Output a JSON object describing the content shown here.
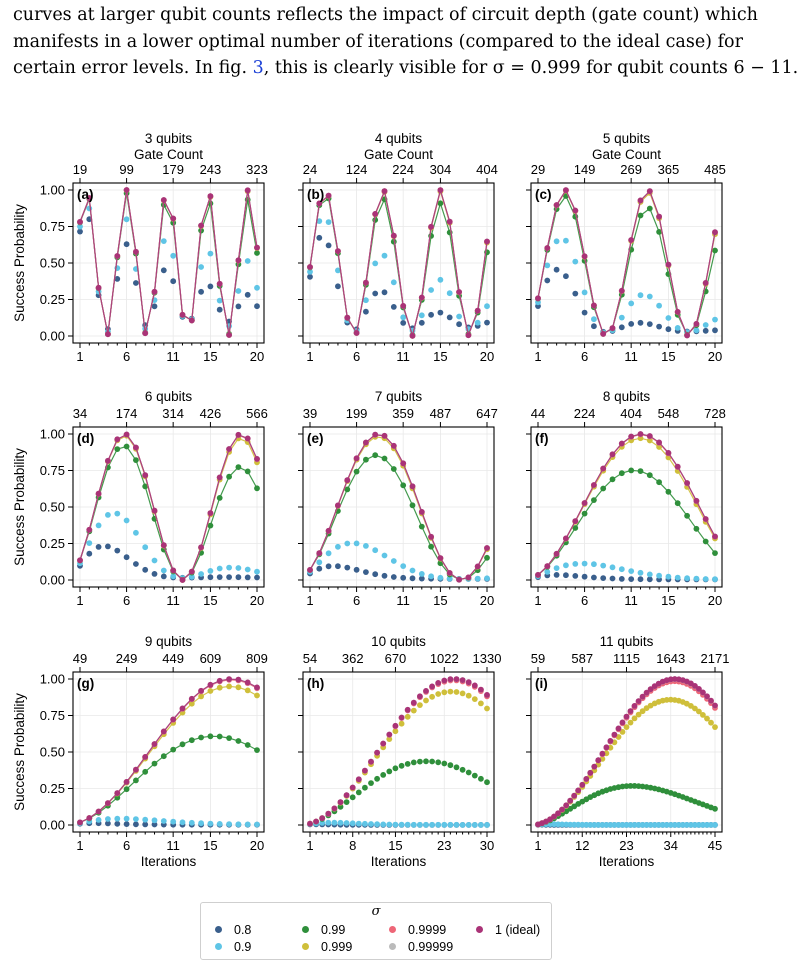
{
  "text": {
    "line1": "curves at larger qubit counts reflects the impact of circuit depth (gate count) which",
    "line2": "manifests in a lower optimal number of iterations (compared to the ideal case) for",
    "line3_a": "certain error levels. In fig. ",
    "line3_ref": "3",
    "line3_b": ", this is clearly visible for σ = 0.999 for qubit counts 6 − 11."
  },
  "legend": {
    "title": "σ",
    "entries": [
      "0.8",
      "0.9",
      "0.99",
      "0.999",
      "0.9999",
      "0.99999",
      "1 (ideal)"
    ]
  },
  "colors": {
    "0.8": "#3a5f8c",
    "0.9": "#5fc5e6",
    "0.99": "#2f8f3b",
    "0.999": "#cfbf3a",
    "0.9999": "#ee6677",
    "0.99999": "#bbbbbb",
    "1": "#aa3377"
  },
  "chart_data": {
    "type": "scatter",
    "shared": {
      "xlabel": "Iterations",
      "ylabel": "Success Probability",
      "top_axis_label": "Gate Count",
      "ylim": [
        0,
        1
      ],
      "yticks": [
        "0.00",
        "0.25",
        "0.50",
        "0.75",
        "1.00"
      ],
      "grid": true,
      "legend_position": "bottom-center"
    },
    "panels": [
      {
        "label": "(a)",
        "title": "3 qubits",
        "qubits": 3,
        "max_iter": 20,
        "xticks": [
          1,
          6,
          11,
          15,
          20
        ],
        "top_ticks": [
          "19",
          "99",
          "179",
          "243",
          "323"
        ],
        "top_axis_label": "Gate Count"
      },
      {
        "label": "(b)",
        "title": "4 qubits",
        "qubits": 4,
        "max_iter": 20,
        "xticks": [
          1,
          6,
          11,
          15,
          20
        ],
        "top_ticks": [
          "24",
          "124",
          "224",
          "304",
          "404"
        ],
        "top_axis_label": "Gate Count"
      },
      {
        "label": "(c)",
        "title": "5 qubits",
        "qubits": 5,
        "max_iter": 20,
        "xticks": [
          1,
          6,
          11,
          15,
          20
        ],
        "top_ticks": [
          "29",
          "149",
          "269",
          "365",
          "485"
        ],
        "top_axis_label": "Gate Count"
      },
      {
        "label": "(d)",
        "title": "6 qubits",
        "qubits": 6,
        "max_iter": 20,
        "xticks": [
          1,
          6,
          11,
          15,
          20
        ],
        "top_ticks": [
          "34",
          "174",
          "314",
          "426",
          "566"
        ]
      },
      {
        "label": "(e)",
        "title": "7 qubits",
        "qubits": 7,
        "max_iter": 20,
        "xticks": [
          1,
          6,
          11,
          15,
          20
        ],
        "top_ticks": [
          "39",
          "199",
          "359",
          "487",
          "647"
        ]
      },
      {
        "label": "(f)",
        "title": "8 qubits",
        "qubits": 8,
        "max_iter": 20,
        "xticks": [
          1,
          6,
          11,
          15,
          20
        ],
        "top_ticks": [
          "44",
          "224",
          "404",
          "548",
          "728"
        ]
      },
      {
        "label": "(g)",
        "title": "9 qubits",
        "qubits": 9,
        "max_iter": 20,
        "xticks": [
          1,
          6,
          11,
          15,
          20
        ],
        "top_ticks": [
          "49",
          "249",
          "449",
          "609",
          "809"
        ]
      },
      {
        "label": "(h)",
        "title": "10 qubits",
        "qubits": 10,
        "max_iter": 30,
        "xticks": [
          1,
          8,
          15,
          23,
          30
        ],
        "top_ticks": [
          "54",
          "362",
          "670",
          "1022",
          "1330"
        ]
      },
      {
        "label": "(i)",
        "title": "11 qubits",
        "qubits": 11,
        "max_iter": 45,
        "xticks": [
          1,
          12,
          23,
          34,
          45
        ],
        "top_ticks": [
          "59",
          "587",
          "1115",
          "1643",
          "2171"
        ]
      }
    ],
    "series": [
      {
        "name": "0.8",
        "sigma": 0.8
      },
      {
        "name": "0.9",
        "sigma": 0.9
      },
      {
        "name": "0.99",
        "sigma": 0.99
      },
      {
        "name": "0.999",
        "sigma": 0.999
      },
      {
        "name": "0.9999",
        "sigma": 0.9999
      },
      {
        "name": "0.99999",
        "sigma": 0.99999
      },
      {
        "name": "1 (ideal)",
        "sigma": 1.0
      }
    ]
  }
}
